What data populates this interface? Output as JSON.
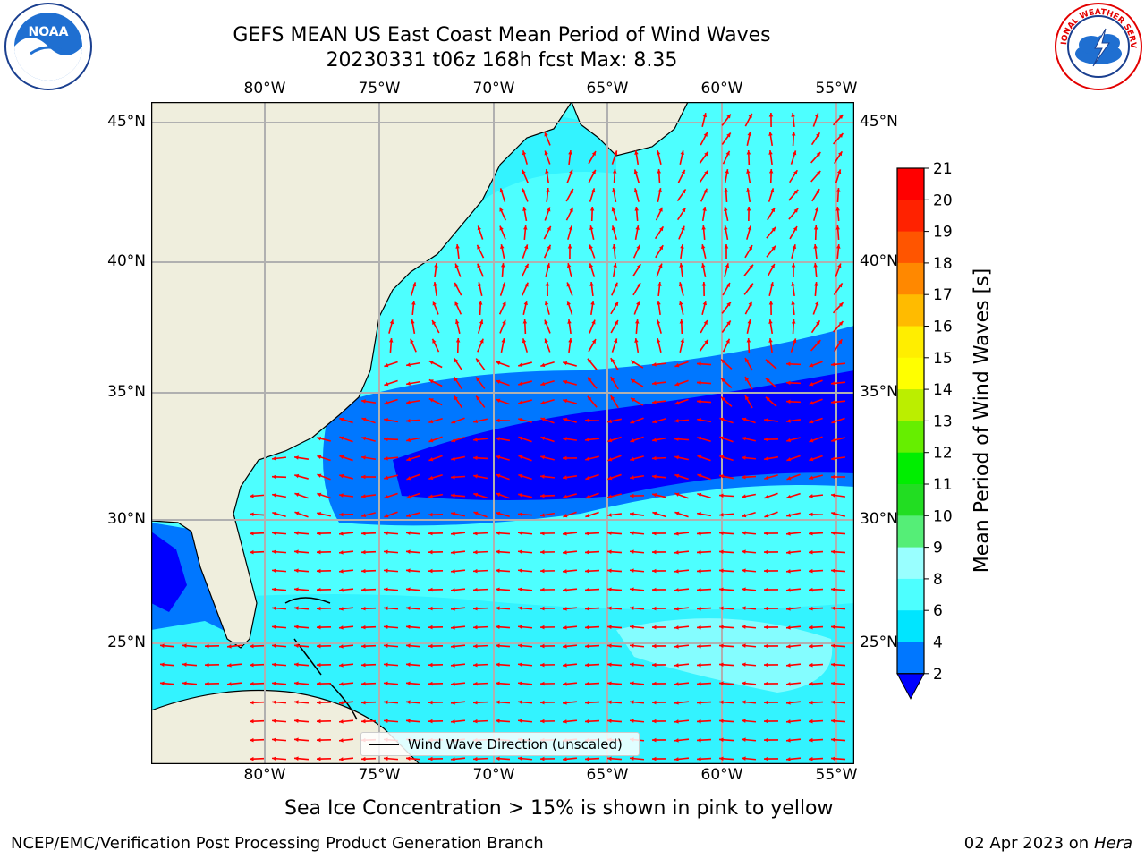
{
  "title": "GEFS MEAN US East Coast Mean Period of Wind Waves",
  "subtitle": "20230331 t06z 168h fcst   Max: 8.35",
  "lon_ticks": [
    "80°W",
    "75°W",
    "70°W",
    "65°W",
    "60°W",
    "55°W"
  ],
  "lat_ticks_left": [
    "45°N",
    "40°N",
    "35°N",
    "30°N",
    "25°N"
  ],
  "lat_ticks_right": [
    "45°N",
    "40°N",
    "35°N",
    "30°N",
    "25°N"
  ],
  "legend": {
    "label": "Wind Wave Direction (unscaled)"
  },
  "colorbar": {
    "label": "Mean Period of Wind Waves [s]",
    "ticks": [
      "2",
      "4",
      "6",
      "8",
      "9",
      "10",
      "11",
      "12",
      "13",
      "14",
      "15",
      "16",
      "17",
      "18",
      "19",
      "20",
      "21"
    ],
    "colors": [
      "#0000ff",
      "#0077ff",
      "#00e5ff",
      "#4dffff",
      "#99ffff",
      "#55ee77",
      "#22dd22",
      "#00ee00",
      "#66ee00",
      "#bbee00",
      "#ffff00",
      "#ffee00",
      "#ffbb00",
      "#ff8800",
      "#ff5500",
      "#ff2200",
      "#ff0000"
    ]
  },
  "note": "Sea Ice Concentration > 15% is shown in pink to yellow",
  "credit": "NCEP/EMC/Verification Post Processing Product Generation Branch",
  "date": {
    "text": "02 Apr 2023 on ",
    "machine": "Hera"
  },
  "logos": {
    "left": "NOAA",
    "right": "NATIONAL WEATHER SERVICE"
  },
  "colors": {
    "land": "#efeedd",
    "grid": "#b0b0b0",
    "arrows": "#ff0000"
  },
  "map_data": {
    "lon_range": [
      -85,
      -54.2
    ],
    "lat_range": [
      20.3,
      46
    ],
    "max_period": 8.35
  }
}
